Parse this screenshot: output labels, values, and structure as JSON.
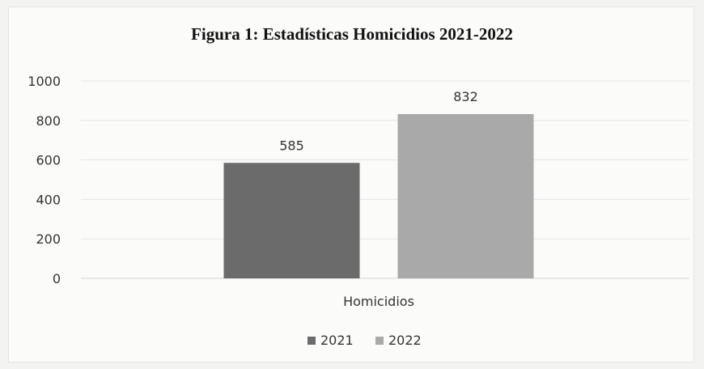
{
  "chart_data": {
    "type": "bar",
    "title": "Figura 1: Estadísticas Homicidios 2021-2022",
    "categories": [
      "Homicidios"
    ],
    "series": [
      {
        "name": "2021",
        "values": [
          585
        ],
        "color": "#6b6b6b"
      },
      {
        "name": "2022",
        "values": [
          832
        ],
        "color": "#a9a9a9"
      }
    ],
    "xlabel": "",
    "ylabel": "",
    "ylim": [
      0,
      1000
    ],
    "yticks": [
      0,
      200,
      400,
      600,
      800,
      1000
    ],
    "grid": true,
    "legend_position": "bottom",
    "data_labels": true
  }
}
